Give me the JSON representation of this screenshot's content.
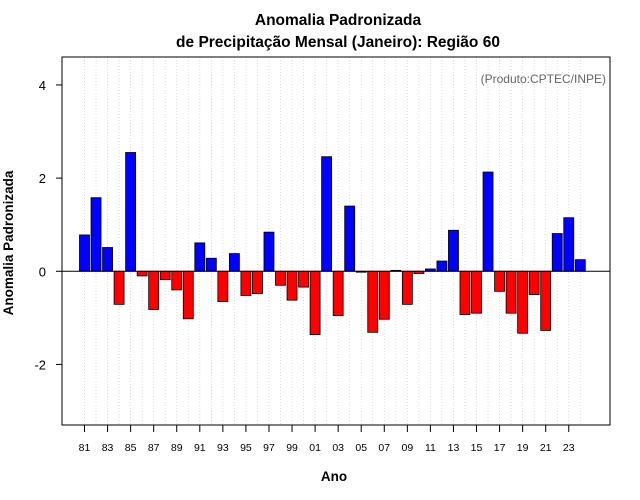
{
  "chart_data": {
    "type": "bar",
    "title_line1": "Anomalia Padronizada",
    "title_line2": "de Precipitação Mensal (Janeiro): Região 60",
    "xlabel": "Ano",
    "ylabel": "Anomalia Padronizada",
    "credit": "(Produto:CPTEC/INPE)",
    "ylim": [
      -3.3,
      4.6
    ],
    "yticks": [
      -2,
      0,
      2,
      4
    ],
    "xtick_labels": [
      "81",
      "83",
      "85",
      "87",
      "89",
      "91",
      "93",
      "95",
      "97",
      "99",
      "01",
      "03",
      "05",
      "07",
      "09",
      "11",
      "13",
      "15",
      "17",
      "19",
      "21",
      "23"
    ],
    "years": [
      1981,
      1982,
      1983,
      1984,
      1985,
      1986,
      1987,
      1988,
      1989,
      1990,
      1991,
      1992,
      1993,
      1994,
      1995,
      1996,
      1997,
      1998,
      1999,
      2000,
      2001,
      2002,
      2003,
      2004,
      2005,
      2006,
      2007,
      2008,
      2009,
      2010,
      2011,
      2012,
      2013,
      2014,
      2015,
      2016,
      2017,
      2018,
      2019,
      2020,
      2021,
      2022,
      2023,
      2024
    ],
    "values": [
      0.78,
      1.58,
      0.51,
      -0.71,
      2.55,
      -0.1,
      -0.82,
      -0.18,
      -0.4,
      -1.02,
      0.61,
      0.28,
      -0.65,
      0.38,
      -0.52,
      -0.48,
      0.84,
      -0.3,
      -0.62,
      -0.34,
      -1.36,
      2.46,
      -0.95,
      1.4,
      -0.02,
      -1.31,
      -1.03,
      0.02,
      -0.71,
      -0.05,
      0.05,
      0.22,
      0.88,
      -0.93,
      -0.9,
      2.13,
      -0.43,
      -0.9,
      -1.33,
      -0.5,
      -1.27,
      0.81,
      1.15,
      0.25
    ],
    "colors": {
      "positive": "#0000ff",
      "negative": "#ff0000",
      "zero_line": "#000000",
      "grid": "#d3d3d3"
    },
    "grid": true
  }
}
